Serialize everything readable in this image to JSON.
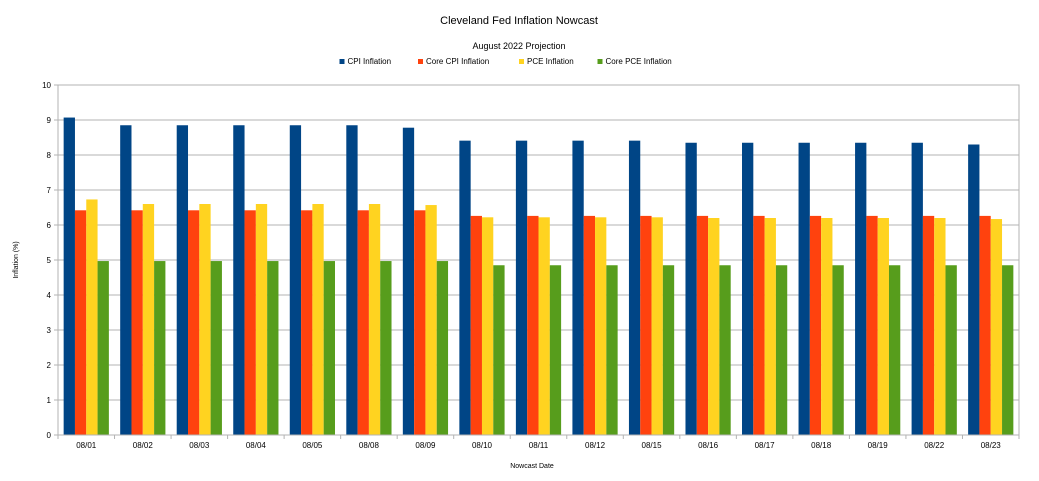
{
  "chart_data": {
    "type": "bar",
    "title": "Cleveland Fed Inflation Nowcast",
    "subtitle": "August 2022 Projection",
    "xlabel": "Nowcast Date",
    "ylabel": "Inflation (%)",
    "ylim": [
      0,
      10
    ],
    "yticks": [
      "0",
      "1",
      "2",
      "3",
      "4",
      "5",
      "6",
      "7",
      "8",
      "9",
      "10"
    ],
    "grid": true,
    "legend_position": "top",
    "categories": [
      "08/01",
      "08/02",
      "08/03",
      "08/04",
      "08/05",
      "08/08",
      "08/09",
      "08/10",
      "08/11",
      "08/12",
      "08/15",
      "08/16",
      "08/17",
      "08/18",
      "08/19",
      "08/22",
      "08/23"
    ],
    "series": [
      {
        "name": "CPI Inflation",
        "color": "#004586",
        "values": [
          9.07,
          8.85,
          8.85,
          8.85,
          8.85,
          8.85,
          8.78,
          8.41,
          8.41,
          8.41,
          8.41,
          8.35,
          8.35,
          8.35,
          8.35,
          8.35,
          8.3
        ]
      },
      {
        "name": "Core CPI Inflation",
        "color": "#ff420e",
        "values": [
          6.42,
          6.42,
          6.42,
          6.42,
          6.42,
          6.42,
          6.42,
          6.26,
          6.26,
          6.26,
          6.26,
          6.26,
          6.26,
          6.26,
          6.26,
          6.26,
          6.26
        ]
      },
      {
        "name": "PCE Inflation",
        "color": "#ffd320",
        "values": [
          6.73,
          6.6,
          6.6,
          6.6,
          6.6,
          6.6,
          6.57,
          6.22,
          6.22,
          6.22,
          6.22,
          6.2,
          6.2,
          6.2,
          6.2,
          6.2,
          6.17
        ]
      },
      {
        "name": "Core PCE Inflation",
        "color": "#579d1c",
        "values": [
          4.97,
          4.97,
          4.97,
          4.97,
          4.97,
          4.97,
          4.97,
          4.85,
          4.85,
          4.85,
          4.85,
          4.85,
          4.85,
          4.85,
          4.85,
          4.85,
          4.85
        ]
      }
    ]
  }
}
